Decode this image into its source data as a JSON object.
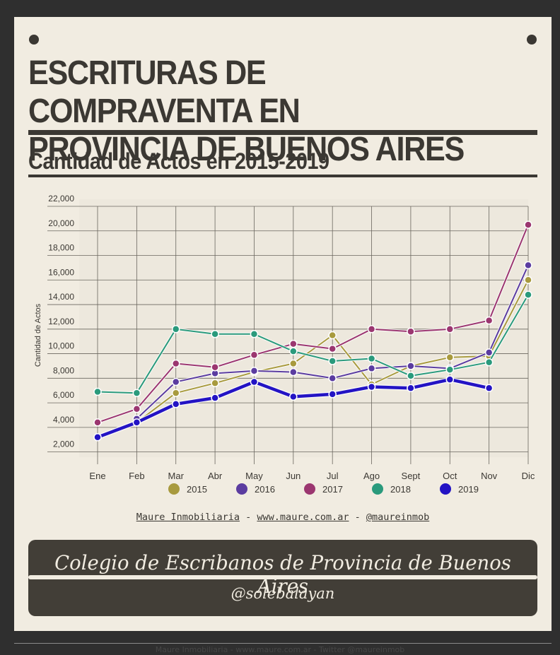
{
  "header": {
    "title_line1": "ESCRITURAS DE COMPRAVENTA EN",
    "title_line2": "PROVINCIA DE BUENOS AIRES",
    "subtitle": "Cantidad de Actos en 2015-2019"
  },
  "credits": {
    "name": "Maure Inmobiliaria",
    "sep1": " - ",
    "site": "www.maure.com.ar",
    "sep2": " - ",
    "handle": "@maureinmob"
  },
  "footer": {
    "line1": "Colegio de Escribanos de Provincia de Buenos Aires",
    "line2": "@solebalayan"
  },
  "bottom_text": "Maure Inmobiliaria - www.maure.com.ar - Twitter @maureinmob",
  "colors": {
    "2015": "#a89a3e",
    "2016": "#5b3ca0",
    "2017": "#9b3670",
    "2018": "#2a9a7c",
    "2019": "#2313c4"
  },
  "chart_data": {
    "type": "line",
    "categories": [
      "Ene",
      "Feb",
      "Mar",
      "Abr",
      "May",
      "Jun",
      "Jul",
      "Ago",
      "Sept",
      "Oct",
      "Nov",
      "Dic"
    ],
    "ylabel": "Cantidad de Actos",
    "ylim": [
      1000,
      22000
    ],
    "yticks": [
      2000,
      4000,
      6000,
      8000,
      10000,
      12000,
      14000,
      16000,
      18000,
      20000,
      22000
    ],
    "grid": true,
    "legend": "bottom",
    "series": [
      {
        "name": "2015",
        "values": [
          null,
          4400,
          6800,
          7600,
          8500,
          9200,
          11500,
          7500,
          9000,
          9700,
          9800,
          16000
        ]
      },
      {
        "name": "2016",
        "values": [
          null,
          4700,
          7700,
          8400,
          8600,
          8500,
          8000,
          8800,
          9000,
          8800,
          10100,
          17200
        ]
      },
      {
        "name": "2017",
        "values": [
          4400,
          5500,
          9200,
          8900,
          9900,
          10800,
          10400,
          12000,
          11800,
          12000,
          12700,
          20500
        ]
      },
      {
        "name": "2018",
        "values": [
          6900,
          6800,
          12000,
          11600,
          11600,
          10200,
          9400,
          9600,
          8200,
          8700,
          9300,
          14800
        ]
      },
      {
        "name": "2019",
        "values": [
          3200,
          4400,
          5900,
          6400,
          7700,
          6500,
          6700,
          7300,
          7200,
          7900,
          7200,
          null
        ]
      }
    ]
  }
}
